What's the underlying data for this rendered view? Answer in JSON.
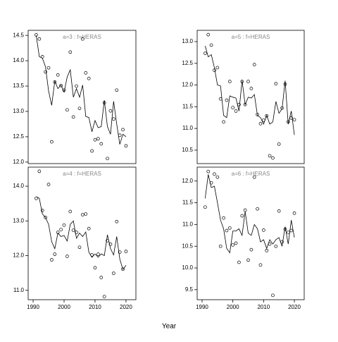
{
  "xlabel": "Year",
  "chart_data": [
    {
      "type": "line",
      "title": "a=3  :  f=HERAS",
      "x": [
        1991,
        1992,
        1993,
        1994,
        1995,
        1996,
        1997,
        1998,
        1999,
        2000,
        2001,
        2002,
        2003,
        2004,
        2005,
        2006,
        2007,
        2008,
        2009,
        2010,
        2011,
        2012,
        2013,
        2014,
        2015,
        2016,
        2017,
        2018,
        2019,
        2020
      ],
      "series": [
        {
          "style": "points",
          "color": "#000000",
          "values": [
            14.51,
            14.43,
            14.08,
            13.78,
            13.86,
            12.4,
            13.58,
            13.72,
            13.51,
            13.42,
            13.03,
            14.17,
            12.89,
            13.5,
            13.06,
            14.43,
            13.76,
            13.65,
            12.22,
            12.44,
            12.46,
            12.36,
            13.17,
            12.07,
            13.01,
            12.85,
            13.42,
            12.53,
            12.64,
            12.32
          ]
        },
        {
          "style": "line",
          "color": "#000000",
          "values": [
            14.5,
            14.08,
            14.05,
            13.88,
            13.4,
            13.12,
            13.6,
            13.45,
            13.52,
            13.38,
            13.68,
            13.82,
            13.28,
            13.45,
            13.28,
            13.52,
            12.9,
            12.88,
            12.6,
            12.82,
            12.68,
            12.7,
            13.22,
            12.7,
            12.55,
            13.2,
            12.75,
            12.35,
            12.55,
            12.5
          ]
        }
      ],
      "xlim": [
        1988.4,
        2023.2
      ],
      "ylim": [
        11.97,
        14.6
      ],
      "yticks": [
        {
          "value": 12,
          "label": "12.0"
        },
        12.5,
        {
          "value": 13,
          "label": "13.0"
        },
        13.5,
        {
          "value": 14,
          "label": "14.0"
        },
        14.5
      ]
    },
    {
      "type": "line",
      "title": "a=5  :  f=HERAS",
      "x": [
        1991,
        1992,
        1993,
        1994,
        1995,
        1996,
        1997,
        1998,
        1999,
        2000,
        2001,
        2002,
        2003,
        2004,
        2005,
        2006,
        2007,
        2008,
        2009,
        2010,
        2011,
        2012,
        2013,
        2014,
        2015,
        2016,
        2017,
        2018,
        2019,
        2020
      ],
      "series": [
        {
          "style": "points",
          "color": "#000000",
          "values": [
            12.73,
            13.16,
            12.92,
            12.34,
            12.4,
            11.68,
            11.15,
            11.65,
            12.08,
            11.48,
            11.4,
            11.55,
            12.08,
            11.55,
            12.08,
            11.92,
            12.47,
            11.32,
            11.11,
            11.19,
            11.29,
            10.37,
            10.32,
            12.03,
            10.64,
            11.47,
            12.02,
            11.15,
            11.24,
            11.2
          ]
        },
        {
          "style": "line",
          "color": "#000000",
          "values": [
            12.9,
            12.65,
            12.7,
            12.4,
            12.0,
            11.98,
            11.3,
            11.25,
            11.75,
            11.72,
            11.7,
            11.4,
            12.1,
            11.55,
            11.72,
            11.7,
            11.78,
            11.3,
            11.25,
            11.1,
            11.3,
            11.1,
            11.15,
            11.62,
            11.35,
            11.45,
            12.1,
            11.1,
            11.4,
            10.85
          ]
        }
      ],
      "xlim": [
        1988.4,
        2023.2
      ],
      "ylim": [
        10.19,
        13.26
      ],
      "yticks": [
        10.5,
        {
          "value": 11,
          "label": "11.0"
        },
        11.5,
        {
          "value": 12,
          "label": "12.0"
        },
        12.5,
        {
          "value": 13,
          "label": "13.0"
        }
      ]
    },
    {
      "type": "line",
      "title": "a=4  :  f=HERAS",
      "x": [
        1991,
        1992,
        1993,
        1994,
        1995,
        1996,
        1997,
        1998,
        1999,
        2000,
        2001,
        2002,
        2003,
        2004,
        2005,
        2006,
        2007,
        2008,
        2009,
        2010,
        2011,
        2012,
        2013,
        2014,
        2015,
        2016,
        2017,
        2018,
        2019,
        2020
      ],
      "series": [
        {
          "style": "points",
          "color": "#000000",
          "values": [
            13.65,
            14.43,
            13.3,
            13.1,
            14.05,
            11.88,
            12.04,
            12.67,
            12.75,
            12.88,
            11.98,
            13.27,
            12.73,
            12.67,
            12.24,
            13.18,
            13.2,
            12.78,
            12.02,
            11.65,
            12.04,
            11.37,
            10.82,
            12.43,
            12.33,
            11.49,
            12.98,
            12.1,
            11.61,
            12.12
          ]
        },
        {
          "style": "line",
          "color": "#000000",
          "values": [
            13.7,
            13.65,
            13.2,
            13.1,
            12.9,
            12.4,
            12.2,
            12.65,
            12.55,
            12.58,
            12.42,
            12.9,
            13.0,
            12.5,
            12.65,
            12.55,
            12.68,
            12.1,
            11.95,
            12.05,
            11.95,
            12.05,
            12.0,
            12.6,
            12.2,
            12.02,
            12.55,
            11.9,
            11.6,
            11.72
          ]
        }
      ],
      "xlim": [
        1988.4,
        2023.2
      ],
      "xticks": [
        1990,
        2000,
        2010,
        2020
      ],
      "ylim": [
        10.73,
        14.55
      ],
      "yticks": [
        {
          "value": 11,
          "label": "11.0"
        },
        {
          "value": 12,
          "label": "12.0"
        },
        {
          "value": 13,
          "label": "13.0"
        },
        {
          "value": 14,
          "label": "14.0"
        }
      ]
    },
    {
      "type": "line",
      "title": "a=6  :  f=HERAS",
      "x": [
        1991,
        1992,
        1993,
        1994,
        1995,
        1996,
        1997,
        1998,
        1999,
        2000,
        2001,
        2002,
        2003,
        2004,
        2005,
        2006,
        2007,
        2008,
        2009,
        2010,
        2011,
        2012,
        2013,
        2014,
        2015,
        2016,
        2017,
        2018,
        2019,
        2020
      ],
      "series": [
        {
          "style": "points",
          "color": "#000000",
          "values": [
            11.4,
            12.22,
            11.96,
            12.16,
            12.09,
            10.5,
            11.15,
            10.86,
            10.92,
            10.53,
            10.57,
            10.13,
            11.2,
            11.33,
            10.18,
            10.42,
            12.09,
            11.36,
            10.07,
            10.87,
            10.4,
            10.55,
            9.37,
            10.5,
            11.31,
            10.6,
            10.89,
            10.82,
            10.86,
            11.26
          ]
        },
        {
          "style": "line",
          "color": "#000000",
          "values": [
            11.6,
            12.15,
            11.85,
            11.88,
            11.5,
            11.1,
            10.9,
            10.45,
            10.35,
            10.85,
            10.85,
            10.9,
            10.75,
            11.3,
            10.8,
            10.75,
            11.0,
            10.9,
            10.6,
            10.65,
            10.45,
            10.65,
            10.55,
            10.65,
            10.7,
            10.5,
            10.95,
            10.55,
            11.1,
            10.7
          ]
        }
      ],
      "xlim": [
        1988.4,
        2023.2
      ],
      "xticks": [
        1990,
        2000,
        2010,
        2020
      ],
      "ylim": [
        9.27,
        12.32
      ],
      "yticks": [
        9.5,
        {
          "value": 10,
          "label": "10.0"
        },
        10.5,
        {
          "value": 11,
          "label": "11.0"
        },
        11.5,
        {
          "value": 12,
          "label": "12.0"
        }
      ]
    }
  ]
}
